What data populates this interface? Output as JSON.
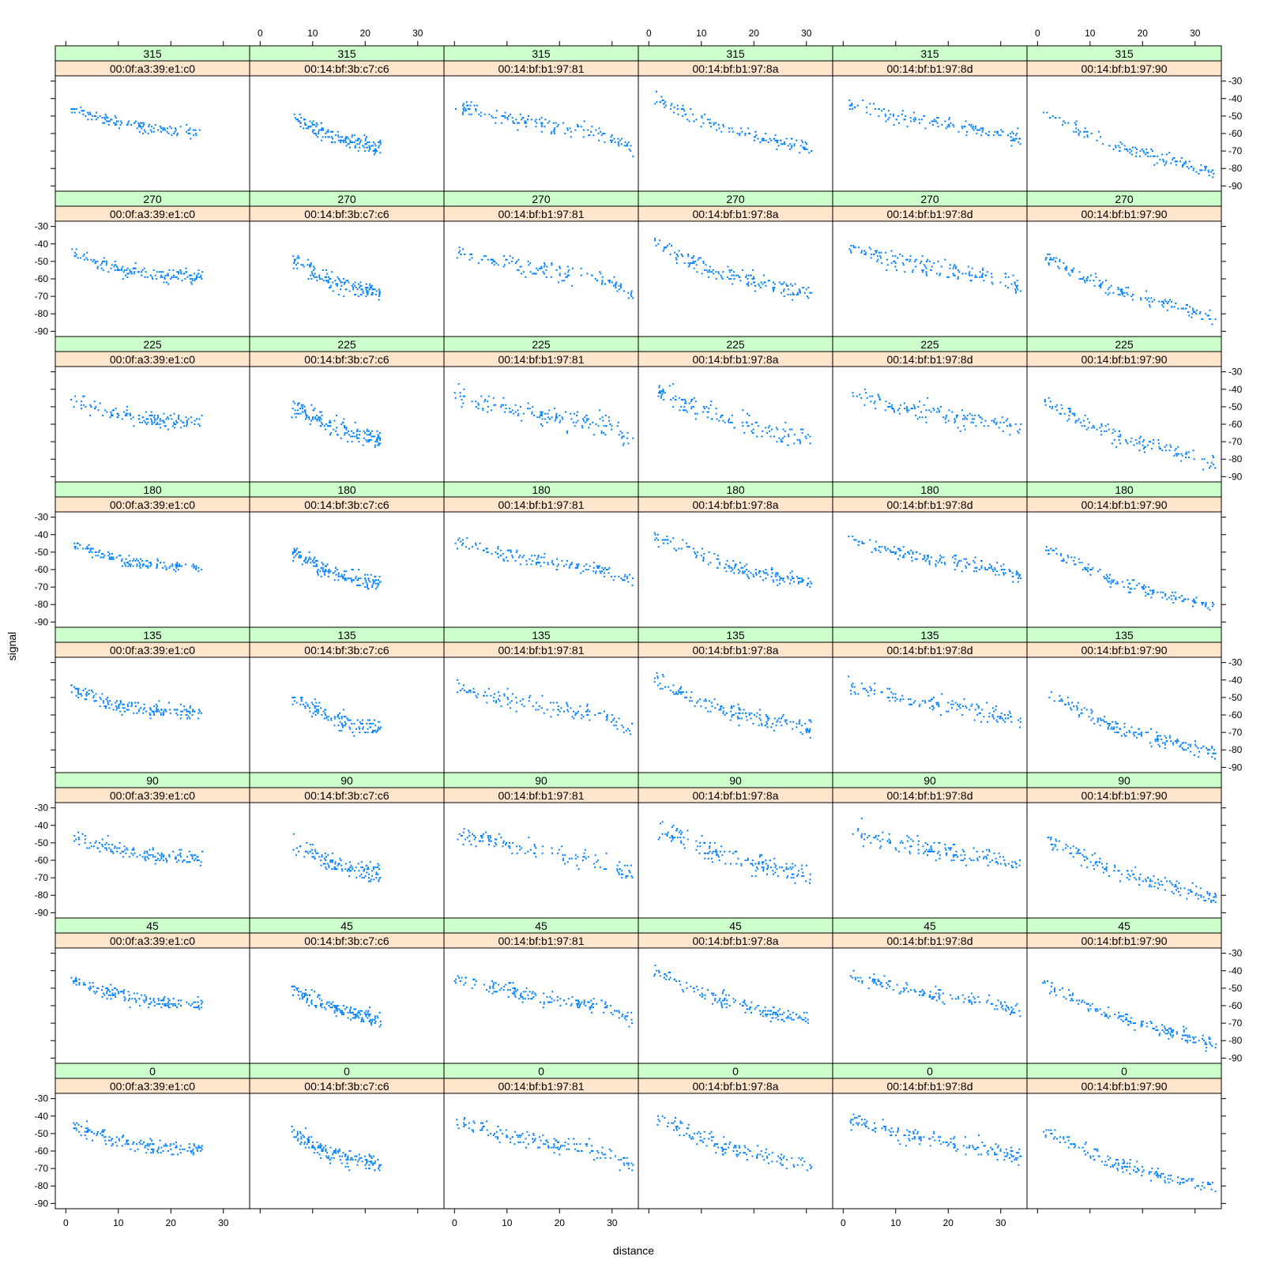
{
  "chart_data": {
    "type": "scatter",
    "layout": "trellis",
    "title": "",
    "xlabel": "distance",
    "ylabel": "signal",
    "xlim": [
      -2,
      35
    ],
    "ylim": [
      -93,
      -27
    ],
    "x_ticks": [
      0,
      10,
      20,
      30
    ],
    "y_ticks": [
      -90,
      -80,
      -70,
      -60,
      -50,
      -40,
      -30
    ],
    "x_tick_labels": [
      "0",
      "10",
      "20",
      "30"
    ],
    "y_tick_labels": [
      "-90",
      "-80",
      "-70",
      "-60",
      "-50",
      "-40",
      "-30"
    ],
    "point_color": "#0080ff",
    "angle_strip_color": "#ccffcc",
    "mac_strip_color": "#ffe5cc",
    "angles": [
      "315",
      "270",
      "225",
      "180",
      "135",
      "90",
      "45",
      "0"
    ],
    "macs": [
      "00:0f:a3:39:e1:c0",
      "00:14:bf:3b:c7:c6",
      "00:14:bf:b1:97:81",
      "00:14:bf:b1:97:8a",
      "00:14:bf:b1:97:8d",
      "00:14:bf:b1:97:90"
    ],
    "series_trends": [
      {
        "mac": "00:0f:a3:39:e1:c0",
        "x_range": [
          1,
          26
        ],
        "y_knots": [
          [
            1,
            -45
          ],
          [
            5,
            -50
          ],
          [
            10,
            -54
          ],
          [
            15,
            -57
          ],
          [
            26,
            -59
          ]
        ],
        "spread": 4
      },
      {
        "mac": "00:14:bf:3b:c7:c6",
        "x_range": [
          6,
          23
        ],
        "y_knots": [
          [
            6,
            -50
          ],
          [
            10,
            -56
          ],
          [
            14,
            -62
          ],
          [
            18,
            -65
          ],
          [
            23,
            -68
          ]
        ],
        "spread": 5
      },
      {
        "mac": "00:14:bf:b1:97:81",
        "x_range": [
          0,
          34
        ],
        "y_knots": [
          [
            0,
            -44
          ],
          [
            10,
            -51
          ],
          [
            20,
            -57
          ],
          [
            28,
            -60
          ],
          [
            34,
            -68
          ]
        ],
        "spread": 5
      },
      {
        "mac": "00:14:bf:b1:97:8a",
        "x_range": [
          1,
          31
        ],
        "y_knots": [
          [
            1,
            -40
          ],
          [
            8,
            -50
          ],
          [
            14,
            -57
          ],
          [
            22,
            -63
          ],
          [
            31,
            -68
          ]
        ],
        "spread": 5
      },
      {
        "mac": "00:14:bf:b1:97:8d",
        "x_range": [
          1,
          34
        ],
        "y_knots": [
          [
            1,
            -42
          ],
          [
            10,
            -50
          ],
          [
            20,
            -55
          ],
          [
            30,
            -60
          ],
          [
            34,
            -64
          ]
        ],
        "spread": 5
      },
      {
        "mac": "00:14:bf:b1:97:90",
        "x_range": [
          1,
          34
        ],
        "y_knots": [
          [
            1,
            -48
          ],
          [
            8,
            -57
          ],
          [
            15,
            -67
          ],
          [
            25,
            -75
          ],
          [
            34,
            -82
          ]
        ],
        "spread": 4
      }
    ],
    "grid": false,
    "legend": "none"
  }
}
